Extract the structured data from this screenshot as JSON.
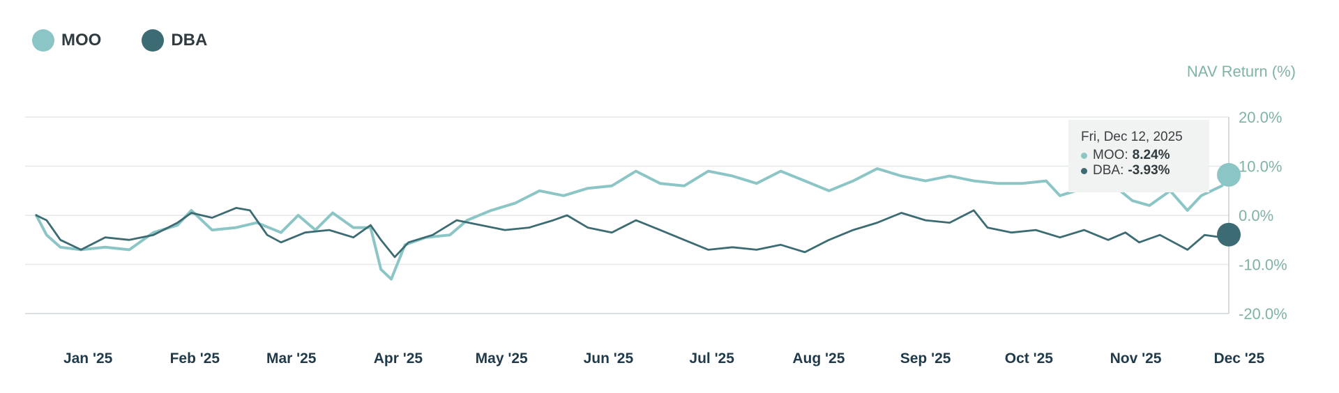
{
  "legend": [
    {
      "name": "MOO",
      "color": "#8cc5c6"
    },
    {
      "name": "DBA",
      "color": "#3c6b73"
    }
  ],
  "tooltip": {
    "date": "Fri, Dec 12, 2025",
    "rows": [
      {
        "label": "MOO:",
        "value": "8.24%",
        "color": "#8cc5c6"
      },
      {
        "label": "DBA:",
        "value": "-3.93%",
        "color": "#3c6b73"
      }
    ]
  },
  "chart_data": {
    "type": "line",
    "ylabel": "NAV Return (%)",
    "ylim": [
      -20,
      20
    ],
    "yticks": [
      20,
      10,
      0,
      -10,
      -20
    ],
    "ytick_labels": [
      "20.0%",
      "10.0%",
      "0.0%",
      "-10.0%",
      "-20.0%"
    ],
    "xlim": [
      "2024-12-31",
      "2025-12-12"
    ],
    "xticks": [
      {
        "date": "2025-01-15",
        "label": "Jan '25"
      },
      {
        "date": "2025-02-15",
        "label": "Feb '25"
      },
      {
        "date": "2025-03-15",
        "label": "Mar '25"
      },
      {
        "date": "2025-04-15",
        "label": "Apr '25"
      },
      {
        "date": "2025-05-15",
        "label": "May '25"
      },
      {
        "date": "2025-06-15",
        "label": "Jun '25"
      },
      {
        "date": "2025-07-15",
        "label": "Jul '25"
      },
      {
        "date": "2025-08-15",
        "label": "Aug '25"
      },
      {
        "date": "2025-09-15",
        "label": "Sep '25"
      },
      {
        "date": "2025-10-15",
        "label": "Oct '25"
      },
      {
        "date": "2025-11-15",
        "label": "Nov '25"
      },
      {
        "date": "2025-12-15",
        "label": "Dec '25"
      }
    ],
    "grid": true,
    "legend_position": "top-left",
    "highlight_date": "2025-12-12",
    "series": [
      {
        "name": "MOO",
        "color": "#8cc5c6",
        "points": [
          [
            "2024-12-31",
            0.0
          ],
          [
            "2025-01-03",
            -4.0
          ],
          [
            "2025-01-07",
            -6.5
          ],
          [
            "2025-01-13",
            -7.0
          ],
          [
            "2025-01-20",
            -6.5
          ],
          [
            "2025-01-27",
            -7.0
          ],
          [
            "2025-02-03",
            -3.5
          ],
          [
            "2025-02-10",
            -2.0
          ],
          [
            "2025-02-14",
            1.0
          ],
          [
            "2025-02-20",
            -3.0
          ],
          [
            "2025-02-27",
            -2.5
          ],
          [
            "2025-03-05",
            -1.5
          ],
          [
            "2025-03-12",
            -3.5
          ],
          [
            "2025-03-17",
            0.0
          ],
          [
            "2025-03-22",
            -3.0
          ],
          [
            "2025-03-27",
            0.5
          ],
          [
            "2025-04-02",
            -2.5
          ],
          [
            "2025-04-07",
            -2.5
          ],
          [
            "2025-04-10",
            -11.0
          ],
          [
            "2025-04-13",
            -13.0
          ],
          [
            "2025-04-17",
            -6.0
          ],
          [
            "2025-04-23",
            -4.5
          ],
          [
            "2025-04-30",
            -4.0
          ],
          [
            "2025-05-05",
            -1.0
          ],
          [
            "2025-05-12",
            1.0
          ],
          [
            "2025-05-19",
            2.5
          ],
          [
            "2025-05-26",
            5.0
          ],
          [
            "2025-06-02",
            4.0
          ],
          [
            "2025-06-09",
            5.5
          ],
          [
            "2025-06-16",
            6.0
          ],
          [
            "2025-06-23",
            9.0
          ],
          [
            "2025-06-30",
            6.5
          ],
          [
            "2025-07-07",
            6.0
          ],
          [
            "2025-07-14",
            9.0
          ],
          [
            "2025-07-21",
            8.0
          ],
          [
            "2025-07-28",
            6.5
          ],
          [
            "2025-08-04",
            9.0
          ],
          [
            "2025-08-11",
            7.0
          ],
          [
            "2025-08-18",
            5.0
          ],
          [
            "2025-08-25",
            7.0
          ],
          [
            "2025-09-01",
            9.5
          ],
          [
            "2025-09-08",
            8.0
          ],
          [
            "2025-09-15",
            7.0
          ],
          [
            "2025-09-22",
            8.0
          ],
          [
            "2025-09-29",
            7.0
          ],
          [
            "2025-10-06",
            6.5
          ],
          [
            "2025-10-13",
            6.5
          ],
          [
            "2025-10-20",
            7.0
          ],
          [
            "2025-10-24",
            4.0
          ],
          [
            "2025-10-31",
            5.5
          ],
          [
            "2025-11-07",
            7.0
          ],
          [
            "2025-11-14",
            3.0
          ],
          [
            "2025-11-19",
            2.0
          ],
          [
            "2025-11-25",
            5.0
          ],
          [
            "2025-11-30",
            1.0
          ],
          [
            "2025-12-04",
            4.0
          ],
          [
            "2025-12-10",
            6.0
          ],
          [
            "2025-12-12",
            8.24
          ]
        ]
      },
      {
        "name": "DBA",
        "color": "#3c6b73",
        "points": [
          [
            "2024-12-31",
            0.0
          ],
          [
            "2025-01-03",
            -1.0
          ],
          [
            "2025-01-07",
            -5.0
          ],
          [
            "2025-01-13",
            -7.0
          ],
          [
            "2025-01-20",
            -4.5
          ],
          [
            "2025-01-27",
            -5.0
          ],
          [
            "2025-02-03",
            -4.0
          ],
          [
            "2025-02-10",
            -1.5
          ],
          [
            "2025-02-14",
            0.5
          ],
          [
            "2025-02-20",
            -0.5
          ],
          [
            "2025-02-27",
            1.5
          ],
          [
            "2025-03-03",
            1.0
          ],
          [
            "2025-03-08",
            -4.0
          ],
          [
            "2025-03-12",
            -5.5
          ],
          [
            "2025-03-19",
            -3.5
          ],
          [
            "2025-03-26",
            -3.0
          ],
          [
            "2025-04-02",
            -4.5
          ],
          [
            "2025-04-07",
            -2.0
          ],
          [
            "2025-04-10",
            -5.0
          ],
          [
            "2025-04-14",
            -8.5
          ],
          [
            "2025-04-18",
            -5.5
          ],
          [
            "2025-04-25",
            -4.0
          ],
          [
            "2025-05-02",
            -1.0
          ],
          [
            "2025-05-09",
            -2.0
          ],
          [
            "2025-05-16",
            -3.0
          ],
          [
            "2025-05-23",
            -2.5
          ],
          [
            "2025-05-30",
            -1.0
          ],
          [
            "2025-06-03",
            0.0
          ],
          [
            "2025-06-09",
            -2.5
          ],
          [
            "2025-06-16",
            -3.5
          ],
          [
            "2025-06-23",
            -1.0
          ],
          [
            "2025-06-30",
            -3.0
          ],
          [
            "2025-07-07",
            -5.0
          ],
          [
            "2025-07-14",
            -7.0
          ],
          [
            "2025-07-21",
            -6.5
          ],
          [
            "2025-07-28",
            -7.0
          ],
          [
            "2025-08-04",
            -6.0
          ],
          [
            "2025-08-11",
            -7.5
          ],
          [
            "2025-08-18",
            -5.0
          ],
          [
            "2025-08-25",
            -3.0
          ],
          [
            "2025-09-01",
            -1.5
          ],
          [
            "2025-09-08",
            0.5
          ],
          [
            "2025-09-15",
            -1.0
          ],
          [
            "2025-09-22",
            -1.5
          ],
          [
            "2025-09-29",
            1.0
          ],
          [
            "2025-10-03",
            -2.5
          ],
          [
            "2025-10-10",
            -3.5
          ],
          [
            "2025-10-17",
            -3.0
          ],
          [
            "2025-10-24",
            -4.5
          ],
          [
            "2025-10-31",
            -3.0
          ],
          [
            "2025-11-07",
            -5.0
          ],
          [
            "2025-11-12",
            -3.5
          ],
          [
            "2025-11-16",
            -5.5
          ],
          [
            "2025-11-22",
            -4.0
          ],
          [
            "2025-11-30",
            -7.0
          ],
          [
            "2025-12-05",
            -4.0
          ],
          [
            "2025-12-10",
            -4.5
          ],
          [
            "2025-12-12",
            -3.93
          ]
        ]
      }
    ]
  }
}
